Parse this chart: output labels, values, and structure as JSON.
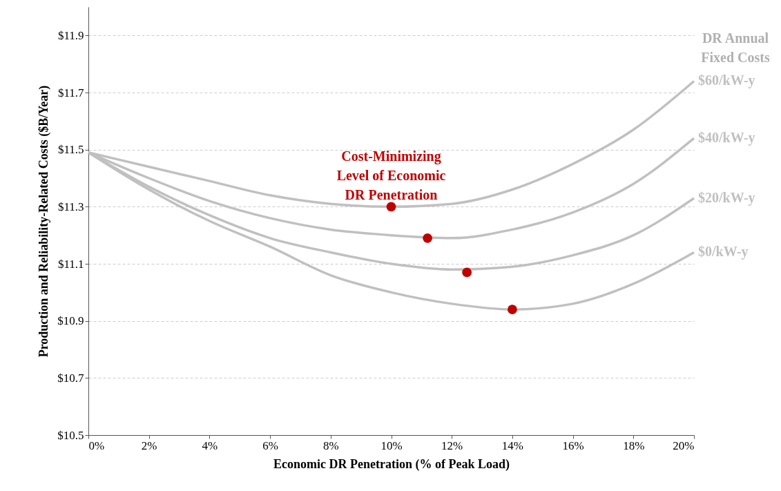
{
  "chart_data": {
    "type": "line",
    "xlabel": "Economic DR Penetration (% of Peak Load)",
    "ylabel": "Production and Reliability-Related Costs ($B/Year)",
    "legend_title": "DR Annual Fixed Costs",
    "x": [
      0,
      2,
      4,
      6,
      8,
      10,
      12,
      14,
      16,
      18,
      20
    ],
    "series": [
      {
        "name": "$60/kW-y",
        "color": "#c0c0c0",
        "values": [
          11.49,
          11.44,
          11.39,
          11.34,
          11.31,
          11.3,
          11.31,
          11.36,
          11.45,
          11.57,
          11.74
        ]
      },
      {
        "name": "$40/kW-y",
        "color": "#c0c0c0",
        "values": [
          11.49,
          11.4,
          11.32,
          11.26,
          11.22,
          11.2,
          11.19,
          11.22,
          11.28,
          11.38,
          11.54
        ]
      },
      {
        "name": "$20/kW-y",
        "color": "#c0c0c0",
        "values": [
          11.49,
          11.37,
          11.27,
          11.19,
          11.14,
          11.1,
          11.08,
          11.09,
          11.13,
          11.2,
          11.33
        ]
      },
      {
        "name": "$0/kW-y",
        "color": "#c0c0c0",
        "values": [
          11.49,
          11.36,
          11.25,
          11.16,
          11.06,
          11.0,
          10.96,
          10.94,
          10.96,
          11.03,
          11.14
        ]
      },
      {
        "type": "scatter",
        "marker": "circle",
        "color": "#c00000",
        "x": [
          10.0,
          11.2,
          12.5,
          14.0
        ],
        "values": [
          11.3,
          11.19,
          11.07,
          10.94
        ]
      }
    ],
    "annotations": [
      {
        "text": "Cost-Minimizing Level of Economic DR Penetration",
        "x": 10,
        "y": 11.3
      }
    ],
    "xlim": [
      0,
      20
    ],
    "xticks": [
      {
        "value": 0,
        "label": "0%"
      },
      {
        "value": 2,
        "label": "2%"
      },
      {
        "value": 4,
        "label": "4%"
      },
      {
        "value": 6,
        "label": "6%"
      },
      {
        "value": 8,
        "label": "8%"
      },
      {
        "value": 10,
        "label": "10%"
      },
      {
        "value": 12,
        "label": "12%"
      },
      {
        "value": 14,
        "label": "14%"
      },
      {
        "value": 16,
        "label": "16%"
      },
      {
        "value": 18,
        "label": "18%"
      },
      {
        "value": 20,
        "label": "20%"
      }
    ],
    "ylim": [
      10.5,
      12.0
    ],
    "yticks": [
      {
        "value": 10.5,
        "label": "$10.5"
      },
      {
        "value": 10.7,
        "label": "$10.7"
      },
      {
        "value": 10.9,
        "label": "$10.9"
      },
      {
        "value": 11.1,
        "label": "$11.1"
      },
      {
        "value": 11.3,
        "label": "$11.3"
      },
      {
        "value": 11.5,
        "label": "$11.5"
      },
      {
        "value": 11.7,
        "label": "$11.7"
      },
      {
        "value": 11.9,
        "label": "$11.9"
      }
    ],
    "grid": "y",
    "marker": "none",
    "line_style": "solid"
  }
}
